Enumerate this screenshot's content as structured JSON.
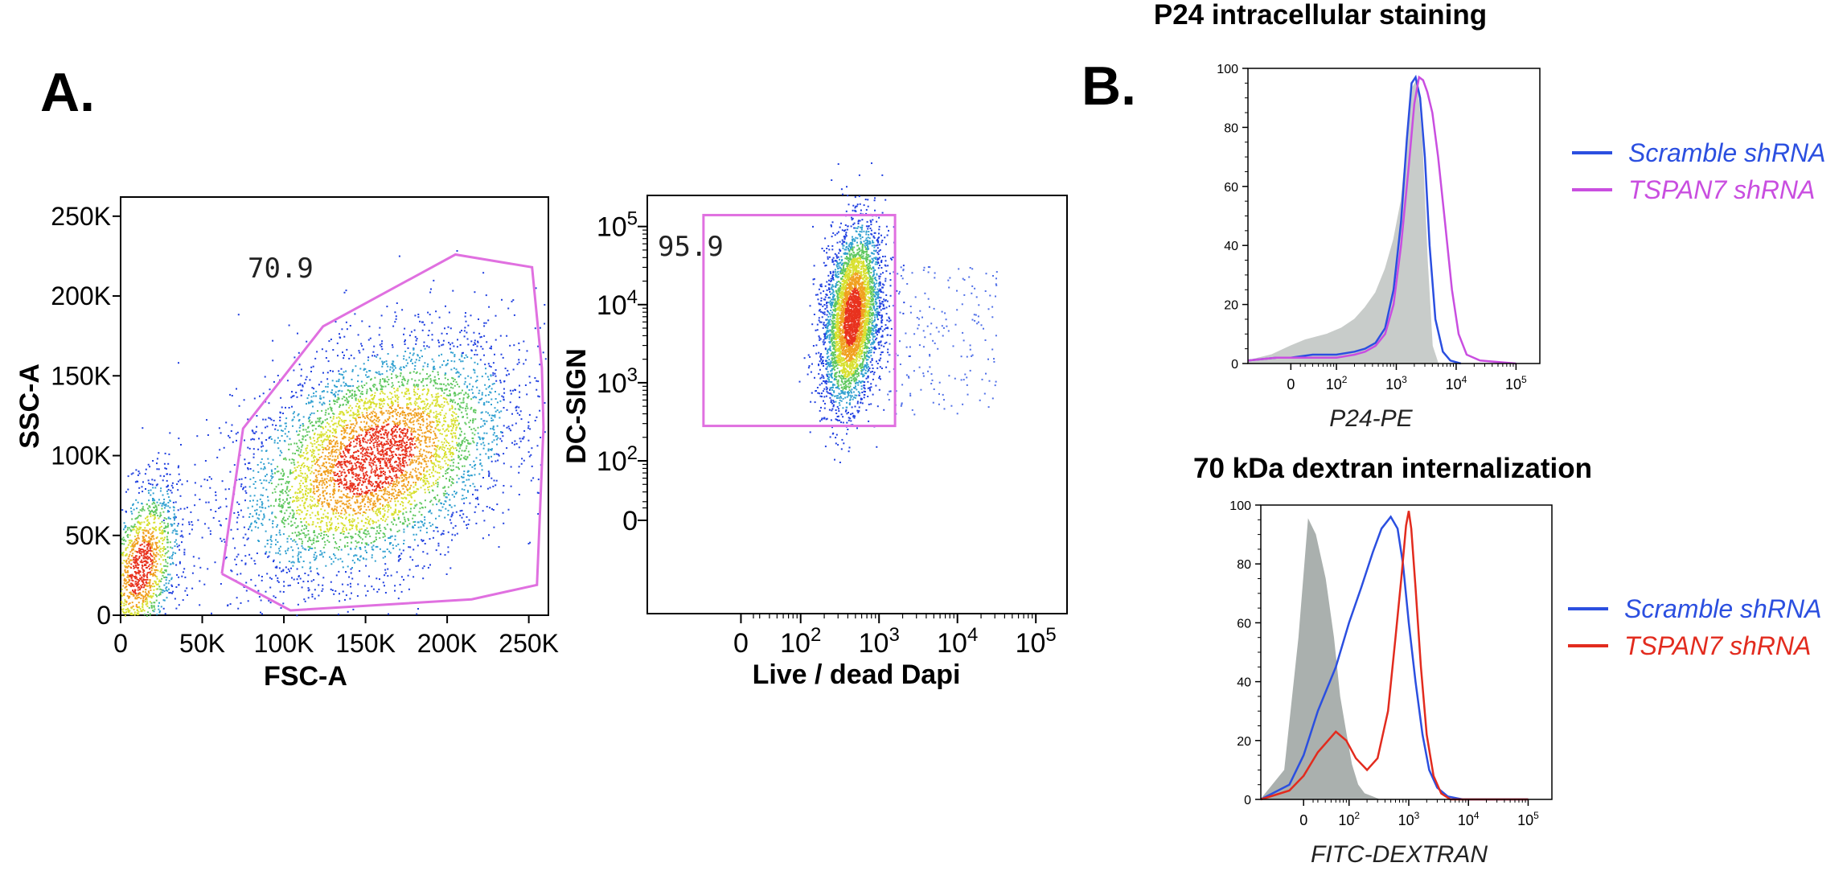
{
  "panel_labels": {
    "a": "A.",
    "b": "B."
  },
  "chart_data": [
    {
      "id": "scatter-fsc-ssc",
      "type": "scatter",
      "title": "",
      "xlabel": "FSC-A",
      "ylabel": "SSC-A",
      "xlim": [
        0,
        262000
      ],
      "ylim": [
        0,
        262000
      ],
      "x_ticks": [
        {
          "value": 0,
          "label": "0"
        },
        {
          "value": 50000,
          "label": "50K"
        },
        {
          "value": 100000,
          "label": "100K"
        },
        {
          "value": 150000,
          "label": "150K"
        },
        {
          "value": 200000,
          "label": "200K"
        },
        {
          "value": 250000,
          "label": "250K"
        }
      ],
      "y_ticks": [
        {
          "value": 0,
          "label": "0"
        },
        {
          "value": 50000,
          "label": "50K"
        },
        {
          "value": 100000,
          "label": "100K"
        },
        {
          "value": 150000,
          "label": "150K"
        },
        {
          "value": 200000,
          "label": "200K"
        },
        {
          "value": 250000,
          "label": "250K"
        }
      ],
      "gate_percent": "70.9",
      "gate_color": "#e070e0",
      "gate_polygon": [
        [
          62000,
          26000
        ],
        [
          104000,
          3000
        ],
        [
          215000,
          10000
        ],
        [
          255000,
          19000
        ],
        [
          259000,
          118000
        ],
        [
          258000,
          155000
        ],
        [
          252000,
          218000
        ],
        [
          205000,
          226000
        ],
        [
          124000,
          181000
        ],
        [
          75000,
          117000
        ],
        [
          62000,
          26000
        ]
      ],
      "populations": [
        {
          "name": "main",
          "center": [
            155000,
            98000
          ],
          "spread": [
            42000,
            34000
          ],
          "count": 5200
        },
        {
          "name": "debris",
          "center": [
            12000,
            30000
          ],
          "spread": [
            12000,
            25000
          ],
          "count": 1500
        }
      ],
      "grid": false
    },
    {
      "id": "scatter-dapi-dcsign",
      "type": "scatter",
      "title": "",
      "xlabel": "Live / dead Dapi",
      "ylabel": "DC-SIGN",
      "x_scale": "biexponential",
      "y_scale": "biexponential",
      "x_ticks": [
        {
          "value": 0,
          "label": "0"
        },
        {
          "value": 100,
          "label": "10",
          "exp": "2"
        },
        {
          "value": 1000,
          "label": "10",
          "exp": "3"
        },
        {
          "value": 10000,
          "label": "10",
          "exp": "4"
        },
        {
          "value": 100000,
          "label": "10",
          "exp": "5"
        }
      ],
      "y_ticks": [
        {
          "value": 0,
          "label": "0"
        },
        {
          "value": 100,
          "label": "10",
          "exp": "2"
        },
        {
          "value": 1000,
          "label": "10",
          "exp": "3"
        },
        {
          "value": 10000,
          "label": "10",
          "exp": "4"
        },
        {
          "value": 100000,
          "label": "10",
          "exp": "5"
        }
      ],
      "gate_percent": "95.9",
      "gate_color": "#e070e0",
      "gate_rect": {
        "x_min": -60,
        "x_max": 1600,
        "y_min": 280,
        "y_max": 140000
      },
      "population": {
        "center_log": [
          2.65,
          3.85
        ],
        "spread_log": [
          0.18,
          0.55
        ],
        "count": 4200
      },
      "grid": false
    },
    {
      "id": "hist-p24",
      "type": "line",
      "title": "P24 intracellular staining",
      "xlabel": "P24-PE",
      "ylabel": "",
      "x_scale": "biexponential",
      "xlim": [
        -90,
        250000
      ],
      "ylim": [
        0,
        100
      ],
      "y_ticks": [
        0,
        20,
        40,
        60,
        80,
        100
      ],
      "x_ticks": [
        {
          "value": 0,
          "label": "0"
        },
        {
          "value": 100,
          "label": "10",
          "exp": "2"
        },
        {
          "value": 1000,
          "label": "10",
          "exp": "3"
        },
        {
          "value": 10000,
          "label": "10",
          "exp": "4"
        },
        {
          "value": 100000,
          "label": "10",
          "exp": "5"
        }
      ],
      "control_fill": "#c8ccca",
      "control": {
        "x": [
          -90,
          -40,
          0,
          30,
          70,
          120,
          200,
          300,
          450,
          650,
          900,
          1200,
          1500,
          1800,
          2200,
          2700,
          3300,
          4000,
          5000
        ],
        "y": [
          1,
          3,
          6,
          8,
          10,
          12,
          15,
          19,
          24,
          32,
          42,
          55,
          75,
          93,
          96,
          75,
          35,
          6,
          0
        ]
      },
      "series": [
        {
          "name": "Scramble shRNA",
          "color": "#2b4fe0",
          "x": [
            -90,
            -30,
            0,
            40,
            100,
            200,
            300,
            450,
            650,
            900,
            1200,
            1500,
            1800,
            2100,
            2500,
            3000,
            3600,
            4500,
            6000,
            8000,
            12000
          ],
          "y": [
            1,
            2,
            2,
            3,
            3,
            4,
            5,
            7,
            12,
            25,
            48,
            76,
            95,
            97,
            90,
            70,
            40,
            15,
            4,
            1,
            0
          ]
        },
        {
          "name": "TSPAN7 shRNA",
          "color": "#c94ee0",
          "x": [
            -90,
            -30,
            0,
            40,
            100,
            200,
            300,
            450,
            650,
            900,
            1200,
            1600,
            2000,
            2400,
            2800,
            3300,
            4000,
            5000,
            6500,
            8500,
            11000,
            15000,
            25000,
            100000
          ],
          "y": [
            1,
            2,
            2,
            2,
            2,
            3,
            4,
            6,
            10,
            20,
            40,
            66,
            88,
            97,
            96,
            92,
            85,
            70,
            48,
            25,
            10,
            3,
            1,
            0
          ]
        }
      ],
      "legend_position": "right"
    },
    {
      "id": "hist-dextran",
      "type": "line",
      "title": "70 kDa  dextran internalization",
      "xlabel": "FITC-DEXTRAN",
      "ylabel": "",
      "x_scale": "biexponential",
      "xlim": [
        -90,
        250000
      ],
      "ylim": [
        0,
        100
      ],
      "y_ticks": [
        0,
        20,
        40,
        60,
        80,
        100
      ],
      "x_ticks": [
        {
          "value": 0,
          "label": "0"
        },
        {
          "value": 100,
          "label": "10",
          "exp": "2"
        },
        {
          "value": 1000,
          "label": "10",
          "exp": "3"
        },
        {
          "value": 10000,
          "label": "10",
          "exp": "4"
        },
        {
          "value": 100000,
          "label": "10",
          "exp": "5"
        }
      ],
      "control_fill": "#aab0ae",
      "control": {
        "x": [
          -90,
          -40,
          -10,
          10,
          25,
          40,
          55,
          70,
          90,
          110,
          140,
          180,
          240,
          320
        ],
        "y": [
          0,
          10,
          55,
          95,
          90,
          75,
          55,
          35,
          22,
          12,
          5,
          2,
          1,
          0
        ]
      },
      "series": [
        {
          "name": "Scramble shRNA",
          "color": "#2b4fe0",
          "x": [
            -90,
            -30,
            0,
            30,
            60,
            100,
            160,
            250,
            350,
            500,
            650,
            800,
            1000,
            1300,
            1700,
            2200,
            3000,
            4500,
            8000,
            100000
          ],
          "y": [
            0,
            5,
            15,
            30,
            45,
            60,
            72,
            84,
            92,
            96,
            92,
            80,
            60,
            40,
            22,
            10,
            4,
            1,
            0,
            0
          ]
        },
        {
          "name": "TSPAN7 shRNA",
          "color": "#e22b1e",
          "x": [
            -90,
            -30,
            0,
            30,
            60,
            90,
            130,
            200,
            300,
            450,
            600,
            750,
            900,
            1000,
            1100,
            1300,
            1600,
            2000,
            2600,
            3500,
            5000,
            100000
          ],
          "y": [
            0,
            3,
            8,
            16,
            23,
            20,
            14,
            10,
            14,
            30,
            55,
            75,
            93,
            98,
            92,
            72,
            45,
            22,
            8,
            2,
            0,
            0
          ]
        }
      ],
      "legend_position": "right"
    }
  ]
}
